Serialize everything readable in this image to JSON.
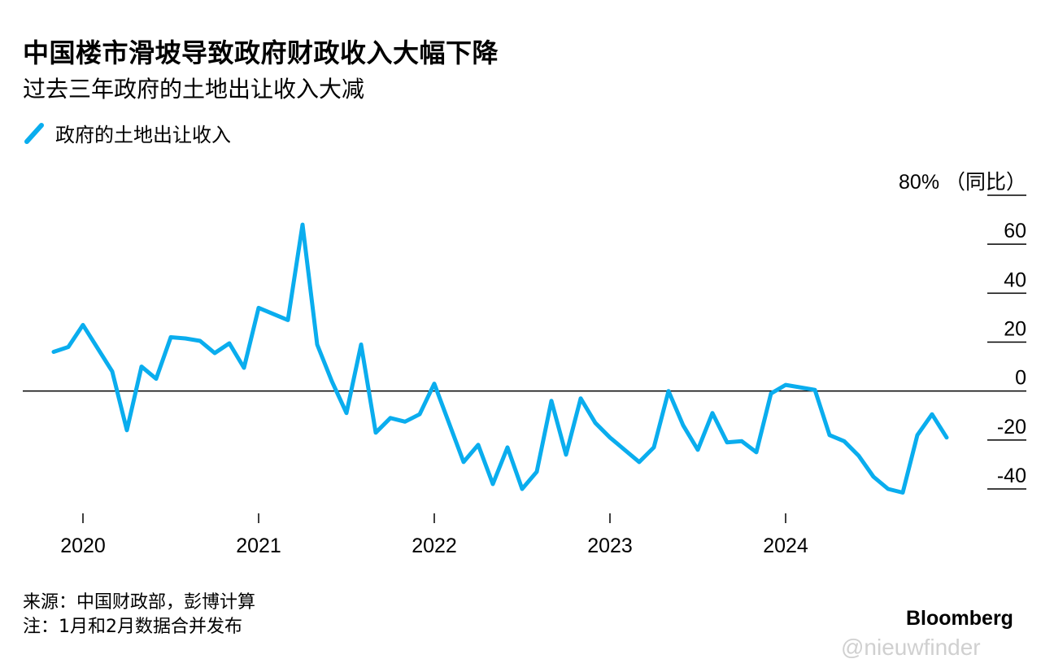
{
  "title": "中国楼市滑坡导致政府财政收入大幅下降",
  "subtitle": "过去三年政府的土地出让收入大减",
  "legend": {
    "label": "政府的土地出让收入",
    "color": "#0AADEE"
  },
  "footer": {
    "source": "来源：中国财政部，彭博计算",
    "note": "注：1月和2月数据合并发布"
  },
  "brand": "Bloomberg",
  "watermark": "@nieuwfinder",
  "chart_data": {
    "type": "line",
    "ylabel_top": "80% （同比）",
    "ylim": [
      -40,
      80
    ],
    "yticks": [
      80,
      60,
      40,
      20,
      0,
      -20,
      -40
    ],
    "ytick_labels": [
      "80% （同比）",
      "60",
      "40",
      "20",
      "0",
      "-20",
      "-40"
    ],
    "year_labels": [
      "2020",
      "2021",
      "2022",
      "2023",
      "2024"
    ],
    "grid": false,
    "zero_line": true,
    "legend_position": "top-left",
    "series": [
      {
        "name": "政府的土地出让收入",
        "color": "#0AADEE",
        "x": [
          "2019-11",
          "2019-12",
          "2020-01",
          "2020-03",
          "2020-04",
          "2020-05",
          "2020-06",
          "2020-07",
          "2020-08",
          "2020-09",
          "2020-10",
          "2020-11",
          "2020-12",
          "2021-01",
          "2021-03",
          "2021-04",
          "2021-05",
          "2021-06",
          "2021-07",
          "2021-08",
          "2021-09",
          "2021-10",
          "2021-11",
          "2021-12",
          "2022-01",
          "2022-03",
          "2022-04",
          "2022-05",
          "2022-06",
          "2022-07",
          "2022-08",
          "2022-09",
          "2022-10",
          "2022-11",
          "2022-12",
          "2023-01",
          "2023-03",
          "2023-04",
          "2023-05",
          "2023-06",
          "2023-07",
          "2023-08",
          "2023-09",
          "2023-10",
          "2023-11",
          "2023-12",
          "2024-01",
          "2024-03",
          "2024-04",
          "2024-05",
          "2024-06",
          "2024-07",
          "2024-08",
          "2024-09",
          "2024-10",
          "2024-11",
          "2024-12"
        ],
        "values": [
          16,
          18,
          27,
          8,
          -16,
          10,
          5,
          22,
          21.5,
          20.5,
          15.5,
          19.5,
          9.5,
          34,
          29,
          68,
          19,
          4,
          -9,
          19,
          -17,
          -11,
          -12.5,
          -9.5,
          3,
          -29,
          -22,
          -38,
          -23,
          -40,
          -33,
          -4,
          -26,
          -3,
          -13,
          -19,
          -29,
          -23,
          0,
          -14,
          -24,
          -9,
          -21,
          -20.5,
          -25,
          -1,
          2.5,
          0.5,
          -18,
          -20.5,
          -26.5,
          -35,
          -40,
          -41.5,
          -18,
          -9.5,
          -19
        ]
      }
    ]
  }
}
